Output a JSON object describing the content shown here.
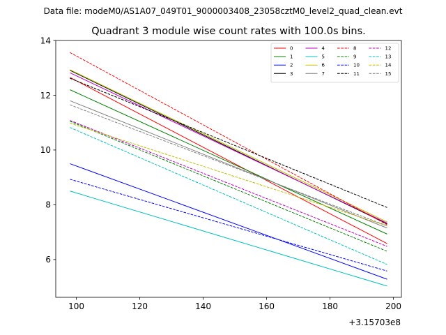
{
  "chart_data": {
    "type": "line",
    "suptitle": "Data file: modeM0/AS1A07_049T01_9000003408_23058cztM0_level2_quad_clean.evt",
    "title": "Quadrant 3 module wise count rates with 100.0s bins.",
    "xlabel": "",
    "ylabel": "",
    "x_offset_label": "+3.15703e8",
    "xlim": [
      93.5,
      202.5
    ],
    "ylim": [
      4.62,
      14.0
    ],
    "x_ticks": [
      100,
      120,
      140,
      160,
      180,
      200
    ],
    "y_ticks": [
      6,
      8,
      10,
      12,
      14
    ],
    "x_tick_labels": [
      "100",
      "120",
      "140",
      "160",
      "180",
      "200"
    ],
    "y_tick_labels": [
      "6",
      "8",
      "10",
      "12",
      "14"
    ],
    "x": [
      98,
      198
    ],
    "legend_position": "top-right",
    "legend_columns": 4,
    "series": [
      {
        "name": "0",
        "color": "#ff0000",
        "style": "solid",
        "values": [
          12.65,
          6.58
        ]
      },
      {
        "name": "1",
        "color": "#008000",
        "style": "solid",
        "values": [
          12.2,
          6.93
        ]
      },
      {
        "name": "2",
        "color": "#0000ff",
        "style": "solid",
        "values": [
          9.5,
          5.28
        ]
      },
      {
        "name": "3",
        "color": "#000000",
        "style": "solid",
        "values": [
          12.91,
          7.3
        ]
      },
      {
        "name": "4",
        "color": "#bf00bf",
        "style": "solid",
        "values": [
          12.82,
          7.33
        ]
      },
      {
        "name": "5",
        "color": "#00bfbf",
        "style": "solid",
        "values": [
          8.5,
          5.03
        ]
      },
      {
        "name": "6",
        "color": "#bfbf00",
        "style": "solid",
        "values": [
          12.93,
          7.37
        ]
      },
      {
        "name": "7",
        "color": "#808080",
        "style": "solid",
        "values": [
          11.8,
          7.15
        ]
      },
      {
        "name": "8",
        "color": "#ff0000",
        "style": "dashed",
        "values": [
          13.56,
          7.27
        ]
      },
      {
        "name": "9",
        "color": "#008000",
        "style": "dashed",
        "values": [
          11.05,
          6.3
        ]
      },
      {
        "name": "10",
        "color": "#0000ff",
        "style": "dashed",
        "values": [
          8.93,
          5.58
        ]
      },
      {
        "name": "11",
        "color": "#000000",
        "style": "dashed",
        "values": [
          12.62,
          7.9
        ]
      },
      {
        "name": "12",
        "color": "#bf00bf",
        "style": "dashed",
        "values": [
          11.08,
          6.48
        ]
      },
      {
        "name": "13",
        "color": "#00bfbf",
        "style": "dashed",
        "values": [
          10.82,
          5.82
        ]
      },
      {
        "name": "14",
        "color": "#bfbf00",
        "style": "dashed",
        "values": [
          10.98,
          7.23
        ]
      },
      {
        "name": "15",
        "color": "#808080",
        "style": "dashed",
        "values": [
          11.65,
          7.23
        ]
      }
    ]
  }
}
